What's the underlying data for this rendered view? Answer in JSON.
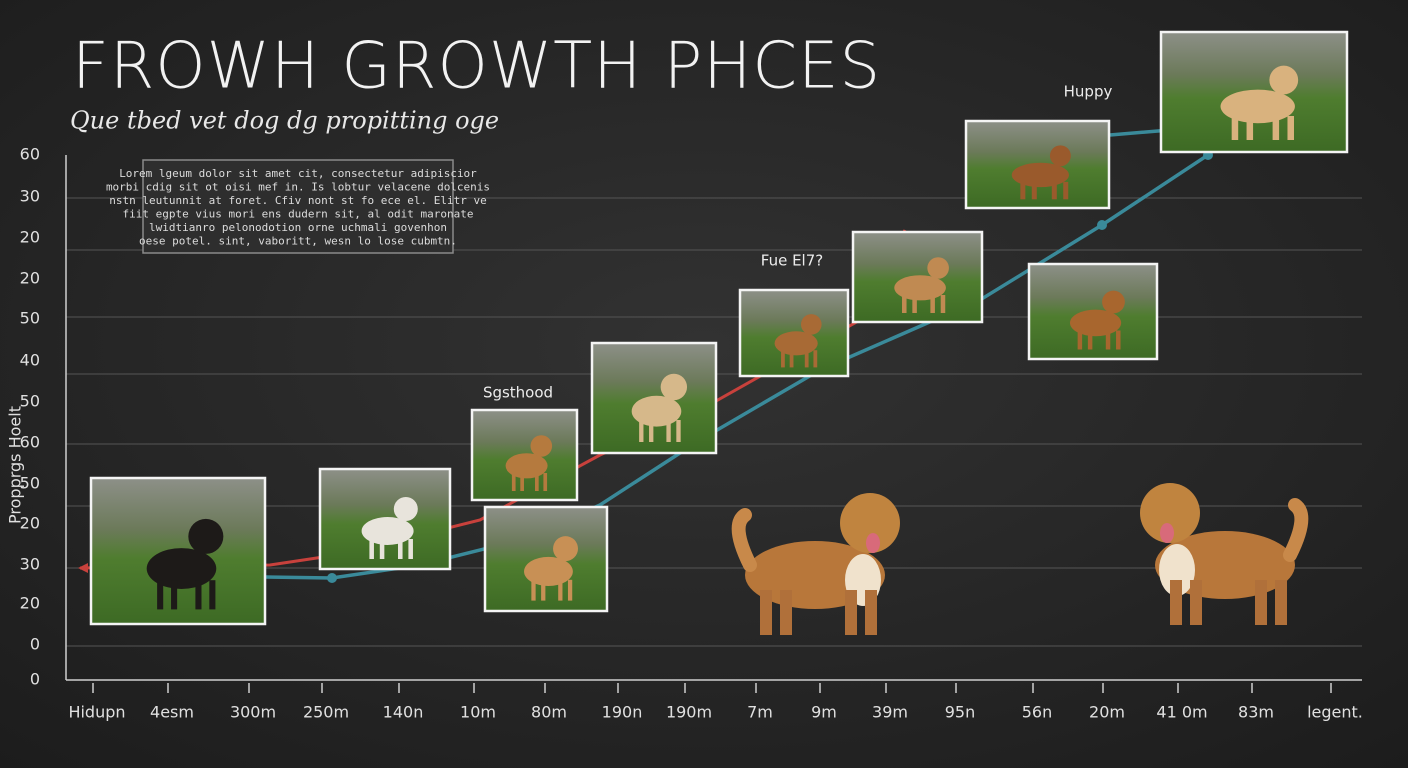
{
  "header": {
    "title": "FROWH  GROWTH PHCES",
    "subtitle": "Que tbed vet dog dg propitting oge"
  },
  "axis": {
    "y_title": "Propprgs Hoelt",
    "y_labels": [
      "60",
      "30",
      "20",
      "20",
      "50",
      "40",
      "50",
      "60",
      "50",
      "20",
      "30",
      "20",
      "0",
      "0"
    ],
    "x_labels": [
      "Hidupn",
      "4esm",
      "300m",
      "250m",
      "140n",
      "10m",
      "80m",
      "190n",
      "190m",
      "7m",
      "9m",
      "39m",
      "95n",
      "56n",
      "20m",
      "41 0m",
      "83m",
      "legent."
    ]
  },
  "note": {
    "lines": [
      "Lorem lgeum dolor sit amet cit, consectetur adipiscior",
      "morbi cdig sit ot oisi mef in. Is lobtur velacene dolcenis",
      "nstn leutunnit at foret. Cfiv nont st fo ece el. Elitr ve",
      "fiit egpte vius mori ens dudern sit, al odit maronate",
      "lwidtianro pelonodotion orne uchmali govenhon",
      "oese potel. sint, vaboritt, wesn lo lose cubmtn."
    ]
  },
  "annotations": [
    "Sgsthood",
    "Fue El7?",
    "Huppy"
  ]
}
